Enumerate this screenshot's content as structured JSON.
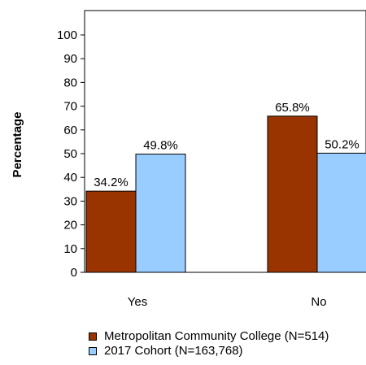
{
  "chart_data": {
    "type": "bar",
    "categories": [
      "Yes",
      "No"
    ],
    "series": [
      {
        "name": "Metropolitan Community College (N=514)",
        "values": [
          34.2,
          65.8
        ],
        "color": "#993300"
      },
      {
        "name": "2017 Cohort (N=163,768)",
        "values": [
          49.8,
          50.2
        ],
        "color": "#99ccff"
      }
    ],
    "data_labels": [
      [
        "34.2%",
        "65.8%"
      ],
      [
        "49.8%",
        "50.2%"
      ]
    ],
    "ylabel": "Percentage",
    "xlabel": "",
    "ylim": [
      0,
      100
    ],
    "yticks": [
      0,
      10,
      20,
      30,
      40,
      50,
      60,
      70,
      80,
      90,
      100
    ],
    "grid": false,
    "legend_position": "bottom"
  }
}
